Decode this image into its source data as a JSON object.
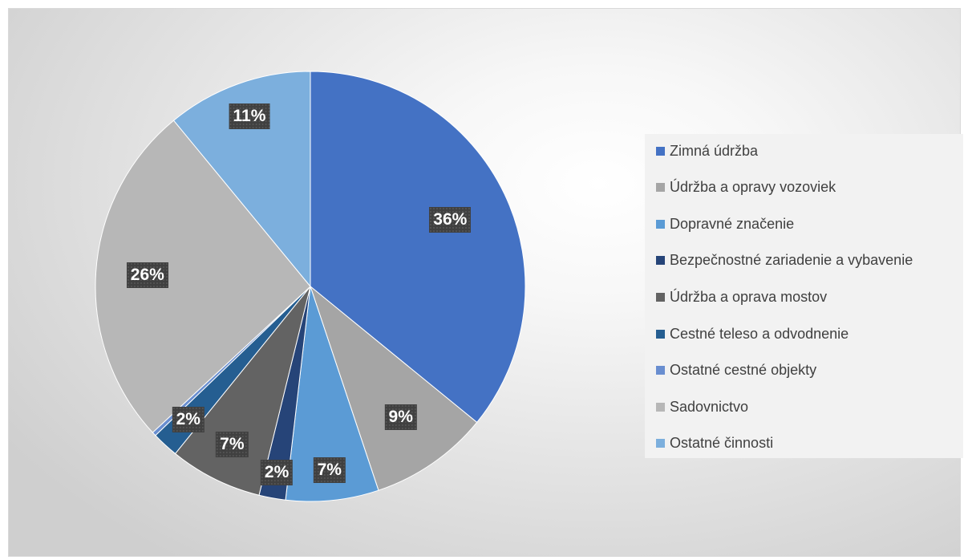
{
  "chart_data": {
    "type": "pie",
    "title": "",
    "categories": [
      "Zimná údržba",
      "Údržba a opravy vozoviek",
      "Dopravné značenie",
      "Bezpečnostné zariadenie a vybavenie",
      "Údržba a oprava mostov",
      "Cestné teleso a odvodnenie",
      "Ostatné cestné objekty",
      "Sadovnictvo",
      "Ostatné činnosti"
    ],
    "values": [
      36,
      9,
      7,
      2,
      7,
      2,
      0.3,
      26,
      11
    ],
    "data_labels": [
      "36%",
      "9%",
      "7%",
      "2%",
      "7%",
      "2%",
      "",
      "26%",
      "11%"
    ],
    "colors": [
      "#4472c4",
      "#a5a5a5",
      "#5b9bd5",
      "#264478",
      "#636363",
      "#255e91",
      "#698ed0",
      "#b7b7b7",
      "#7cafdd"
    ],
    "legend_position": "right",
    "start_angle": "12 o'clock, clockwise"
  }
}
